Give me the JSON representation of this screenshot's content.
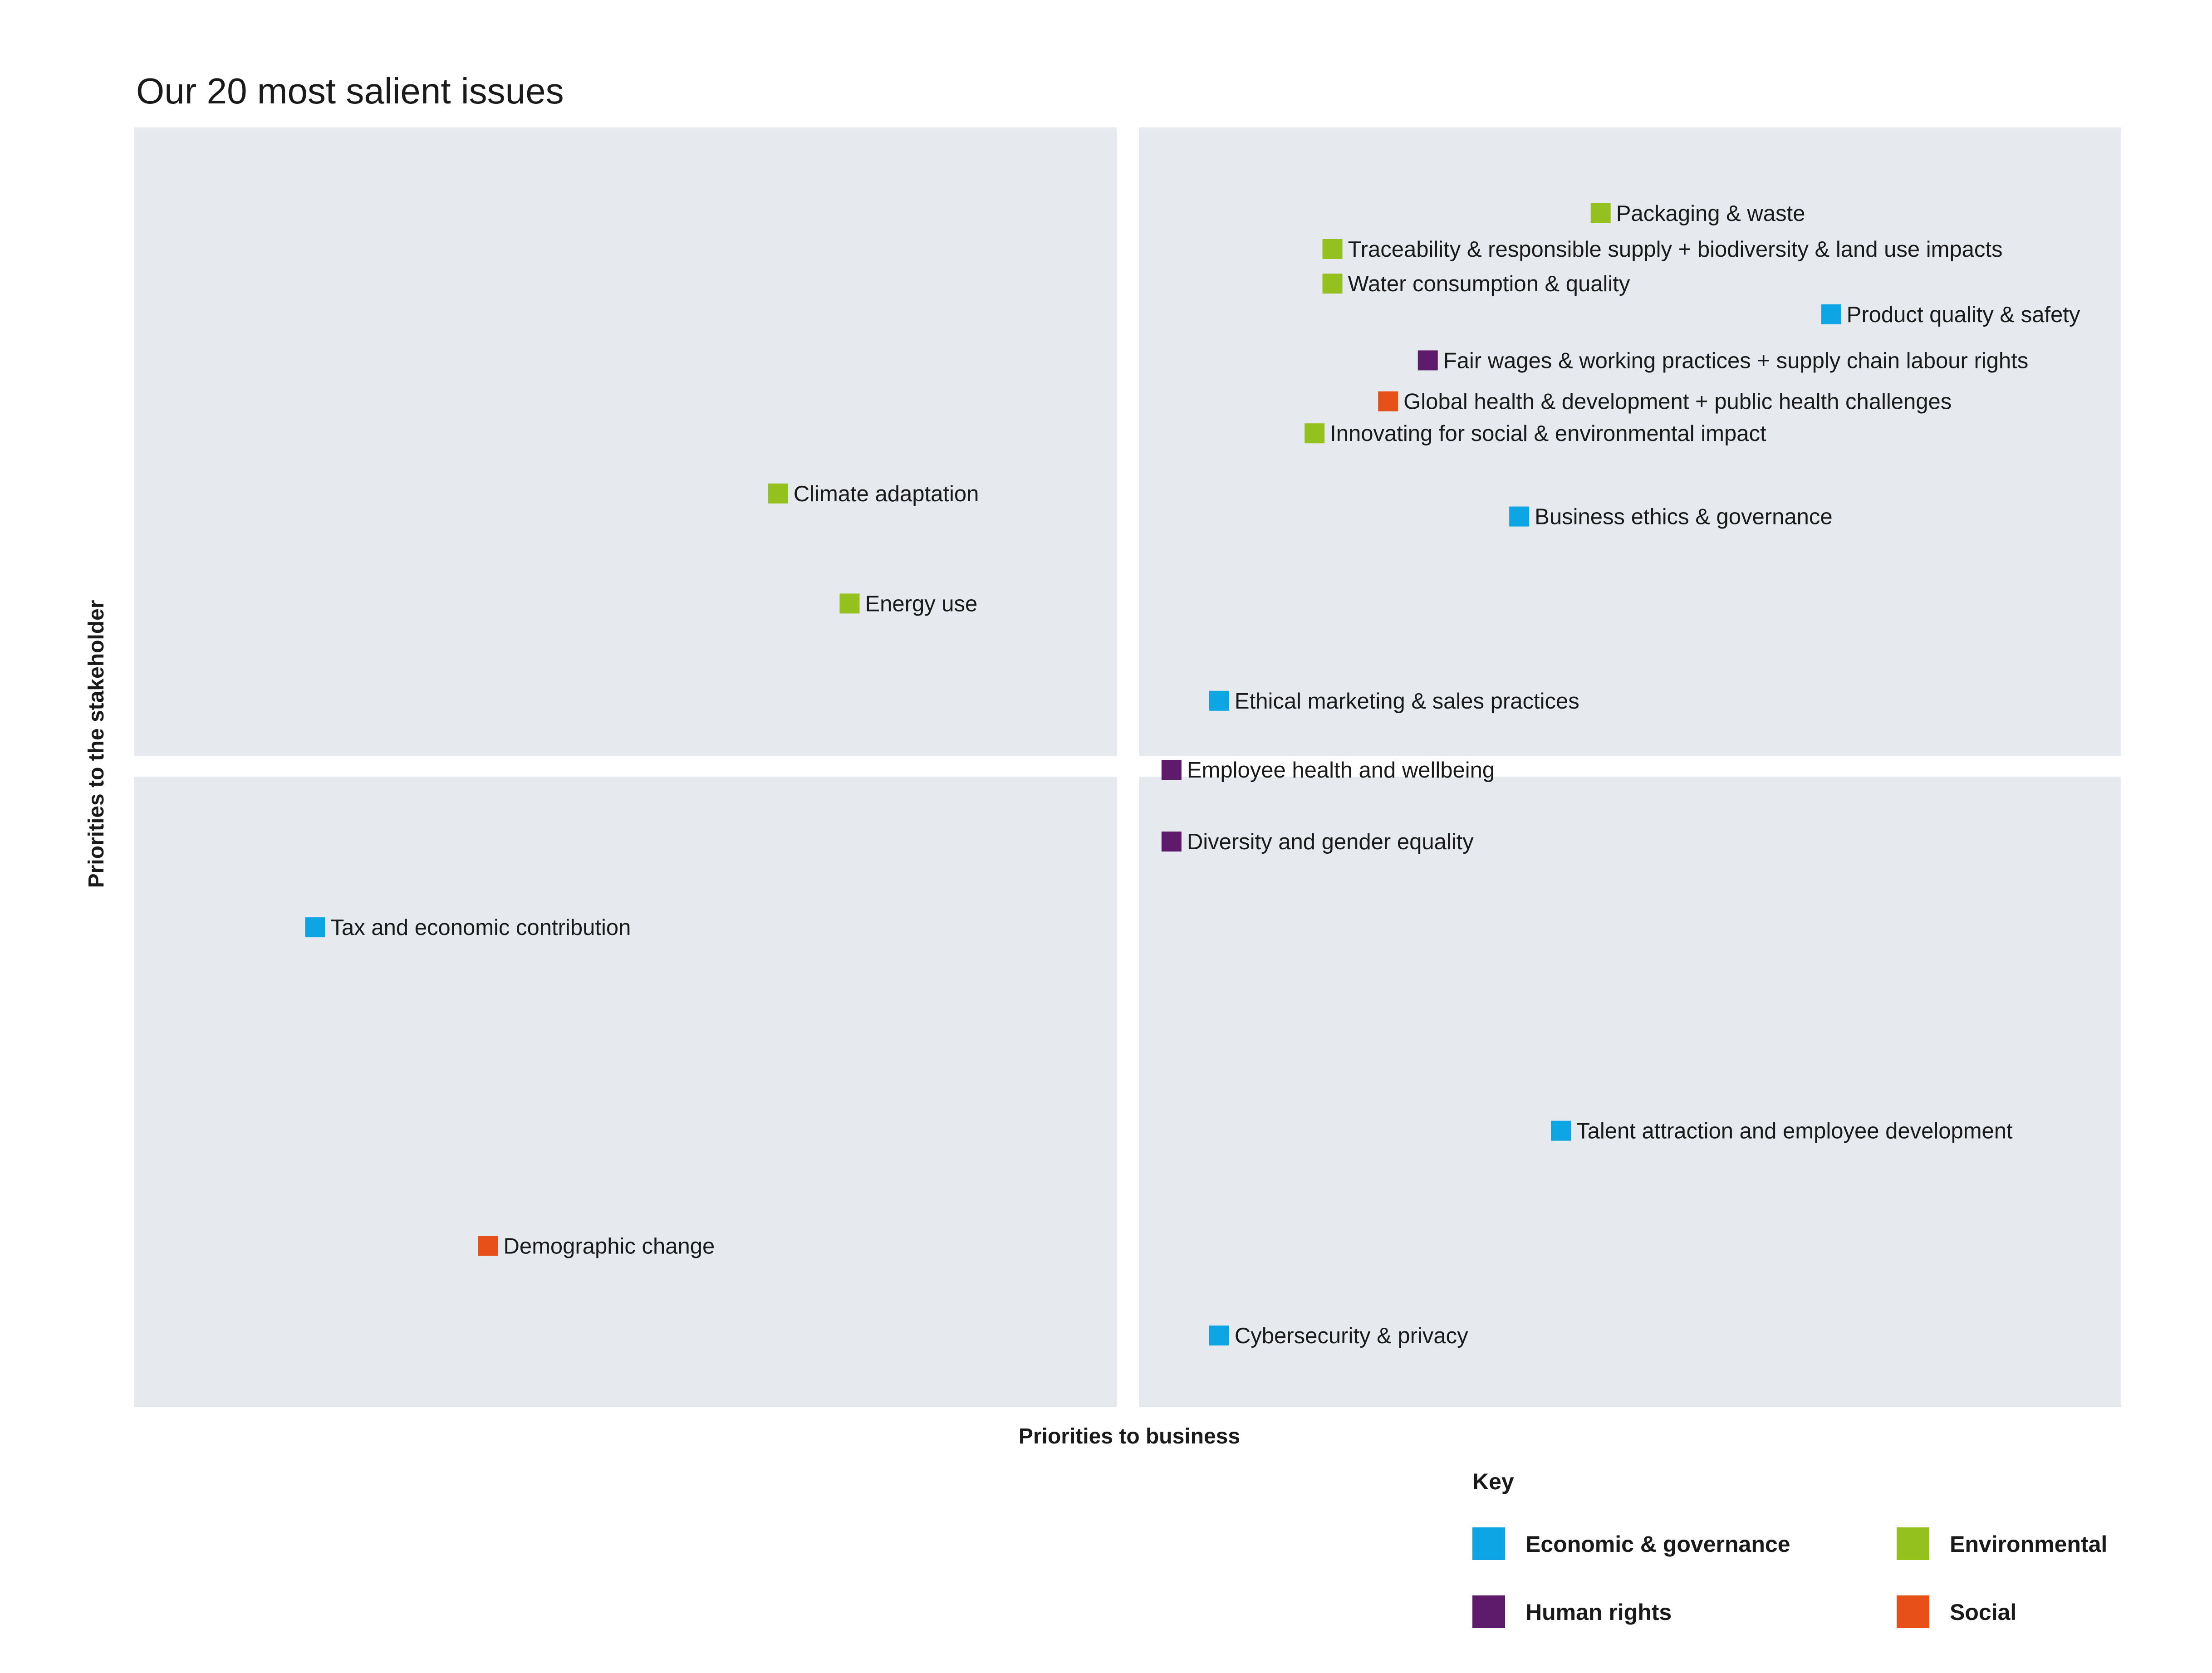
{
  "chart_data": {
    "type": "scatter",
    "title": "Our 20 most salient issues",
    "xlabel": "Priorities to business",
    "ylabel": "Priorities to the stakeholder",
    "xlim": [
      0,
      100
    ],
    "ylim": [
      0,
      100
    ],
    "grid": false,
    "quadrants": 4,
    "legend": {
      "title": "Key",
      "placement": "bottom-right",
      "items": [
        {
          "category": "economic",
          "label": "Economic & governance"
        },
        {
          "category": "environmental",
          "label": "Environmental"
        },
        {
          "category": "human_rights",
          "label": "Human rights"
        },
        {
          "category": "social",
          "label": "Social"
        }
      ]
    },
    "colors": {
      "economic": "#0ea5e4",
      "environmental": "#95c11f",
      "human_rights": "#5e1a6b",
      "social": "#e8501a",
      "quadrant": "#e6e9ed"
    },
    "points": [
      {
        "label": "Packaging & waste",
        "category": "environmental",
        "x": 73.8,
        "y": 93.3
      },
      {
        "label": "Traceability & responsible supply + biodiversity & land use impacts",
        "category": "environmental",
        "x": 60.3,
        "y": 90.5
      },
      {
        "label": "Water consumption & quality",
        "category": "environmental",
        "x": 60.3,
        "y": 87.8
      },
      {
        "label": "Product quality & safety",
        "category": "economic",
        "x": 85.4,
        "y": 85.4
      },
      {
        "label": "Fair wages & working practices + supply chain labour rights",
        "category": "human_rights",
        "x": 65.1,
        "y": 81.8
      },
      {
        "label": "Global health & development + public health challenges",
        "category": "social",
        "x": 63.1,
        "y": 78.6
      },
      {
        "label": "Innovating for social & environmental impact",
        "category": "environmental",
        "x": 59.4,
        "y": 76.1
      },
      {
        "label": "Climate adaptation",
        "category": "environmental",
        "x": 32.4,
        "y": 71.4
      },
      {
        "label": "Business ethics & governance",
        "category": "economic",
        "x": 69.7,
        "y": 69.6
      },
      {
        "label": "Energy use",
        "category": "environmental",
        "x": 36.0,
        "y": 62.8
      },
      {
        "label": "Ethical marketing & sales practices",
        "category": "economic",
        "x": 54.6,
        "y": 55.2
      },
      {
        "label": "Employee health and wellbeing",
        "category": "human_rights",
        "x": 52.2,
        "y": 49.8
      },
      {
        "label": "Diversity and gender equality",
        "category": "human_rights",
        "x": 52.2,
        "y": 44.2
      },
      {
        "label": "Tax and economic contribution",
        "category": "economic",
        "x": 9.1,
        "y": 37.5
      },
      {
        "label": "Talent attraction and employee development",
        "category": "economic",
        "x": 71.8,
        "y": 21.6
      },
      {
        "label": "Demographic change",
        "category": "social",
        "x": 17.8,
        "y": 12.6
      },
      {
        "label": "Cybersecurity & privacy",
        "category": "economic",
        "x": 54.6,
        "y": 5.6
      }
    ]
  }
}
